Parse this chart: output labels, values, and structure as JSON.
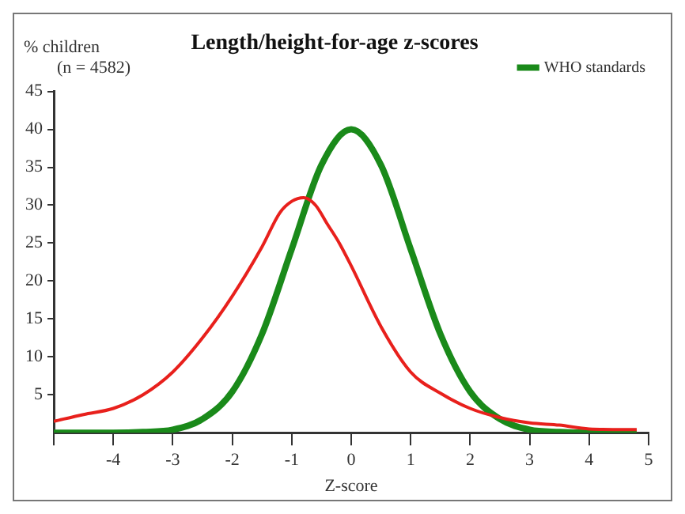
{
  "chart_data": {
    "type": "line",
    "title": "Length/height-for-age z-scores",
    "xlabel": "Z-score",
    "ylabel": "% children",
    "annotations": [
      "(n = 4582)"
    ],
    "xlim": [
      -5,
      5
    ],
    "xticks": [
      {
        "value": -5,
        "label": null
      },
      -4,
      -3,
      -2,
      -1,
      0,
      1,
      2,
      3,
      4,
      5
    ],
    "ylim": [
      0,
      45
    ],
    "yticks": [
      5,
      10,
      15,
      20,
      25,
      30,
      35,
      40,
      45
    ],
    "series": [
      {
        "color": "#e8201c",
        "x": [
          -5,
          -4.5,
          -4,
          -3.5,
          -3,
          -2.5,
          -2,
          -1.5,
          -1.2,
          -1,
          -0.8,
          -0.6,
          -0.4,
          -0.2,
          0,
          0.5,
          1,
          1.5,
          2,
          2.5,
          3,
          3.5,
          4,
          4.8
        ],
        "values": [
          1.5,
          2.4,
          3.2,
          5,
          8,
          12.5,
          18,
          24.5,
          29,
          30.5,
          31,
          30,
          27.5,
          25,
          22,
          14,
          8,
          5.2,
          3.2,
          2,
          1.3,
          1,
          0.5,
          0.4
        ]
      },
      {
        "name": "WHO standards",
        "color": "#1a8a1a",
        "x": [
          -5,
          -4,
          -3.5,
          -3,
          -2.5,
          -2,
          -1.5,
          -1,
          -0.5,
          0,
          0.5,
          1,
          1.5,
          2,
          2.5,
          3,
          3.5,
          4,
          4.8
        ],
        "values": [
          0,
          0,
          0.1,
          0.4,
          1.8,
          5.4,
          13,
          24.2,
          35.3,
          40,
          35.3,
          24.2,
          13,
          5.4,
          1.8,
          0.4,
          0.1,
          0,
          0
        ]
      }
    ],
    "legend": "top right",
    "grid": false,
    "marker": "none",
    "line_style": "solid"
  }
}
